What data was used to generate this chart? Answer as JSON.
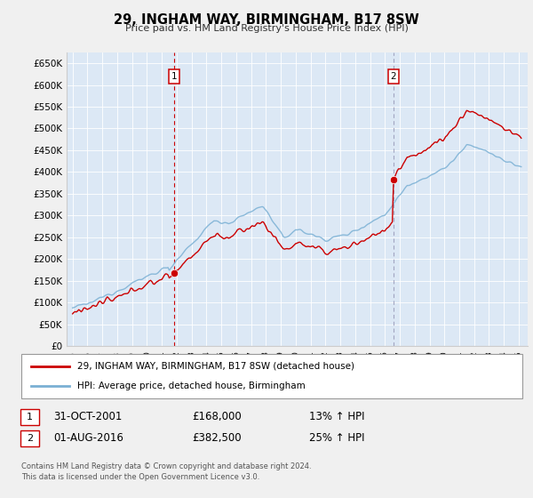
{
  "title": "29, INGHAM WAY, BIRMINGHAM, B17 8SW",
  "subtitle": "Price paid vs. HM Land Registry's House Price Index (HPI)",
  "fig_bg": "#f0f0f0",
  "plot_bg": "#dce8f5",
  "ylim": [
    0,
    675000
  ],
  "yticks": [
    0,
    50000,
    100000,
    150000,
    200000,
    250000,
    300000,
    350000,
    400000,
    450000,
    500000,
    550000,
    600000,
    650000
  ],
  "ytick_labels": [
    "£0",
    "£50K",
    "£100K",
    "£150K",
    "£200K",
    "£250K",
    "£300K",
    "£350K",
    "£400K",
    "£450K",
    "£500K",
    "£550K",
    "£600K",
    "£650K"
  ],
  "xlim": [
    1994.6,
    2025.6
  ],
  "xtick_years": [
    1995,
    1996,
    1997,
    1998,
    1999,
    2000,
    2001,
    2002,
    2003,
    2004,
    2005,
    2006,
    2007,
    2008,
    2009,
    2010,
    2011,
    2012,
    2013,
    2014,
    2015,
    2016,
    2017,
    2018,
    2019,
    2020,
    2021,
    2022,
    2023,
    2024,
    2025
  ],
  "sale1_x": 2001.833,
  "sale1_price": 168000,
  "sale2_x": 2016.583,
  "sale2_price": 382500,
  "line_color_red": "#cc0000",
  "line_color_blue": "#7ab0d4",
  "vline1_color": "#cc0000",
  "vline2_color": "#8888aa",
  "box_color": "#cc0000",
  "legend_line1": "29, INGHAM WAY, BIRMINGHAM, B17 8SW (detached house)",
  "legend_line2": "HPI: Average price, detached house, Birmingham",
  "table_row1": [
    "1",
    "31-OCT-2001",
    "£168,000",
    "13% ↑ HPI"
  ],
  "table_row2": [
    "2",
    "01-AUG-2016",
    "£382,500",
    "25% ↑ HPI"
  ],
  "footnote1": "Contains HM Land Registry data © Crown copyright and database right 2024.",
  "footnote2": "This data is licensed under the Open Government Licence v3.0."
}
